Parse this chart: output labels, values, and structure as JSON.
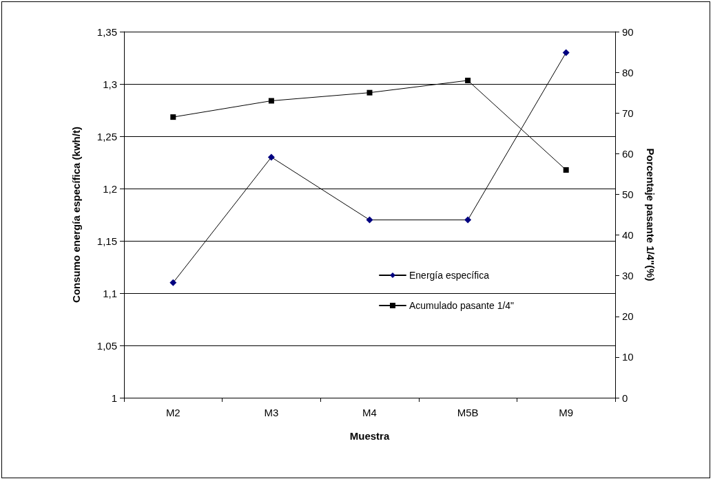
{
  "chart_data": {
    "type": "line",
    "xlabel": "Muestra",
    "ylabel": "Consumo energía específica (kwh/t)",
    "y2label": "Porcentaje pasante 1/4\"(%)",
    "categories": [
      "M2",
      "M3",
      "M4",
      "M5B",
      "M9"
    ],
    "series": [
      {
        "name": "Energía específica",
        "color": "#000080",
        "marker": "diamond",
        "values": [
          1.11,
          1.23,
          1.17,
          1.17,
          1.33
        ]
      },
      {
        "name": "Acumulado pasante 1/4\"",
        "color": "#000000",
        "marker": "square",
        "axis": "y2",
        "values": [
          69,
          73,
          75,
          78,
          56
        ]
      }
    ],
    "ylim": [
      1,
      1.35
    ],
    "yticks": [
      1,
      {
        "value": 1.05,
        "label": "1,05"
      },
      {
        "value": 1.1,
        "label": "1,1"
      },
      {
        "value": 1.15,
        "label": "1,15"
      },
      {
        "value": 1.2,
        "label": "1,2"
      },
      {
        "value": 1.25,
        "label": "1,25"
      },
      {
        "value": 1.3,
        "label": "1,3"
      },
      {
        "value": 1.35,
        "label": "1,35"
      }
    ],
    "y2lim": [
      0,
      90
    ],
    "y2ticks": [
      0,
      10,
      20,
      30,
      40,
      50,
      60,
      70,
      80,
      90
    ],
    "grid": "y",
    "legend": "right",
    "line_style": "solid"
  }
}
